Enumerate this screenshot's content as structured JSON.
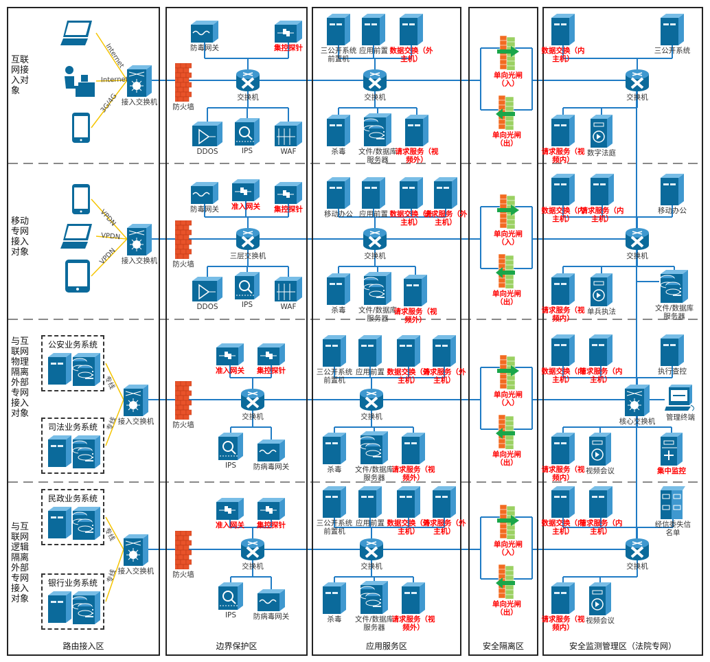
{
  "colors": {
    "device": "#0b6a9b",
    "wire": "#1f7bc4",
    "highlight": "#ff0000",
    "firewall": "#e8532a",
    "link": "#f5c400"
  },
  "zones": [
    "路由接入区",
    "边界保护区",
    "应用服务区",
    "安全隔离区",
    "安全监测管理区（法院专网）"
  ],
  "rows": [
    {
      "label": "互联网接入对象",
      "links": [
        "Internet",
        "Internet",
        "3G/4G"
      ],
      "nodes": [
        {
          "icon": "laptop",
          "label": ""
        },
        {
          "icon": "person",
          "label": ""
        },
        {
          "icon": "phone",
          "label": ""
        },
        {
          "icon": "l3switch",
          "label": "接入交换机"
        },
        {
          "icon": "firewall",
          "label": "防火墙"
        },
        {
          "icon": "gateway",
          "label": "防毒网关"
        },
        {
          "icon": "probe",
          "label": "集控探针",
          "highlight": true
        },
        {
          "icon": "switch",
          "label": "交换机"
        },
        {
          "icon": "ddos",
          "label": "DDOS"
        },
        {
          "icon": "ips",
          "label": "IPS"
        },
        {
          "icon": "waf",
          "label": "WAF"
        },
        {
          "icon": "server",
          "label": "三公开系统前置机"
        },
        {
          "icon": "server",
          "label": "应用前置"
        },
        {
          "icon": "server",
          "label": "数据交换（外主机）",
          "highlight": true
        },
        {
          "icon": "switch",
          "label": "交换机"
        },
        {
          "icon": "server",
          "label": "杀毒"
        },
        {
          "icon": "db",
          "label": "文件/数据库服务器"
        },
        {
          "icon": "server",
          "label": "请求服务（视频外）",
          "highlight": true
        },
        {
          "icon": "gate-in",
          "label": "单向光闸（入）",
          "highlight": true
        },
        {
          "icon": "gate-out",
          "label": "单向光闸（出）",
          "highlight": true
        },
        {
          "icon": "server",
          "label": "数据交换（内主机）",
          "highlight": true
        },
        {
          "icon": "server",
          "label": "三公开系统"
        },
        {
          "icon": "switch",
          "label": "交换机"
        },
        {
          "icon": "server",
          "label": "请求服务（视频内）",
          "highlight": true
        },
        {
          "icon": "video",
          "label": "数字法庭"
        }
      ]
    },
    {
      "label": "移动专网接入对象",
      "links": [
        "VPDN",
        "VPDN",
        "VPDN"
      ],
      "nodes": [
        {
          "icon": "phone",
          "label": ""
        },
        {
          "icon": "laptop",
          "label": ""
        },
        {
          "icon": "tablet",
          "label": ""
        },
        {
          "icon": "l3switch",
          "label": "接入交换机"
        },
        {
          "icon": "firewall",
          "label": "防火墙"
        },
        {
          "icon": "gateway",
          "label": "防毒网关"
        },
        {
          "icon": "probe",
          "label": "准入网关",
          "highlight": true
        },
        {
          "icon": "probe",
          "label": "集控探针",
          "highlight": true
        },
        {
          "icon": "switch",
          "label": "三层交换机"
        },
        {
          "icon": "ddos",
          "label": "DDOS"
        },
        {
          "icon": "ips",
          "label": "IPS"
        },
        {
          "icon": "waf",
          "label": "WAF"
        },
        {
          "icon": "server",
          "label": "移动办公"
        },
        {
          "icon": "server",
          "label": "应用前置"
        },
        {
          "icon": "server",
          "label": "数据交换（外主机）",
          "highlight": true
        },
        {
          "icon": "server",
          "label": "请求服务（外主机）",
          "highlight": true
        },
        {
          "icon": "switch",
          "label": "交换机"
        },
        {
          "icon": "server",
          "label": "杀毒"
        },
        {
          "icon": "db",
          "label": "文件/数据库服务器"
        },
        {
          "icon": "server",
          "label": "请求服务（视频外）",
          "highlight": true
        },
        {
          "icon": "gate-in",
          "label": "单向光闸（入）",
          "highlight": true
        },
        {
          "icon": "gate-out",
          "label": "单向光闸（出）",
          "highlight": true
        },
        {
          "icon": "server",
          "label": "数据交换（内主机）",
          "highlight": true
        },
        {
          "icon": "server",
          "label": "请求服务（内主机）",
          "highlight": true
        },
        {
          "icon": "server",
          "label": "移动办公"
        },
        {
          "icon": "switch",
          "label": "交换机"
        },
        {
          "icon": "server",
          "label": "请求服务（视频内）",
          "highlight": true
        },
        {
          "icon": "video",
          "label": "单兵执法"
        },
        {
          "icon": "db",
          "label": "文件/数据库服务器"
        }
      ]
    },
    {
      "label": "与互联网物理隔离外部专网接入对象",
      "links": [
        "专线",
        "专线"
      ],
      "nodes": [
        {
          "icon": "group",
          "label": "公安业务系统"
        },
        {
          "icon": "group",
          "label": "司法业务系统"
        },
        {
          "icon": "l3switch",
          "label": "接入交换机"
        },
        {
          "icon": "probe",
          "label": "准入网关",
          "highlight": true
        },
        {
          "icon": "probe",
          "label": "集控探针",
          "highlight": true
        },
        {
          "icon": "firewall",
          "label": "防火墙"
        },
        {
          "icon": "switch",
          "label": "交换机"
        },
        {
          "icon": "ips",
          "label": "IPS"
        },
        {
          "icon": "gateway",
          "label": "防病毒网关"
        },
        {
          "icon": "server",
          "label": "三公开系统前置机"
        },
        {
          "icon": "server",
          "label": "应用前置"
        },
        {
          "icon": "server",
          "label": "数据交换（外主机）",
          "highlight": true
        },
        {
          "icon": "server",
          "label": "请求服务（外主机）",
          "highlight": true
        },
        {
          "icon": "switch",
          "label": "交换机"
        },
        {
          "icon": "server",
          "label": "杀毒"
        },
        {
          "icon": "db",
          "label": "文件/数据库服务器"
        },
        {
          "icon": "server",
          "label": "请求服务（视频外）",
          "highlight": true
        },
        {
          "icon": "gate-in",
          "label": "单向光闸（入）",
          "highlight": true
        },
        {
          "icon": "gate-out",
          "label": "单向光闸（出）",
          "highlight": true
        },
        {
          "icon": "server",
          "label": "数据交换（内主机）",
          "highlight": true
        },
        {
          "icon": "server",
          "label": "请求服务（内主机）",
          "highlight": true
        },
        {
          "icon": "server",
          "label": "执行查控"
        },
        {
          "icon": "l3switch",
          "label": "核心交换机"
        },
        {
          "icon": "terminal",
          "label": "管理终端"
        },
        {
          "icon": "server",
          "label": "请求服务（视频内）",
          "highlight": true
        },
        {
          "icon": "video",
          "label": "视频会议"
        },
        {
          "icon": "monitor",
          "label": "集中监控",
          "highlight": true
        }
      ]
    },
    {
      "label": "与互联网逻辑隔离外部专网接入对象",
      "links": [
        "专线",
        "专线"
      ],
      "nodes": [
        {
          "icon": "group",
          "label": "民政业务系统"
        },
        {
          "icon": "group",
          "label": "银行业务系统"
        },
        {
          "icon": "l3switch",
          "label": "接入交换机"
        },
        {
          "icon": "probe",
          "label": "准入网关",
          "highlight": true
        },
        {
          "icon": "probe",
          "label": "集控探针",
          "highlight": true
        },
        {
          "icon": "firewall",
          "label": "防火墙"
        },
        {
          "icon": "switch",
          "label": "交换机"
        },
        {
          "icon": "ips",
          "label": "IPS"
        },
        {
          "icon": "gateway",
          "label": "防病毒网关"
        },
        {
          "icon": "server",
          "label": "三公开系统前置机"
        },
        {
          "icon": "server",
          "label": "应用前置"
        },
        {
          "icon": "server",
          "label": "数据交换（外主机）",
          "highlight": true
        },
        {
          "icon": "server",
          "label": "请求服务（外主机）",
          "highlight": true
        },
        {
          "icon": "switch",
          "label": "交换机"
        },
        {
          "icon": "server",
          "label": "杀毒"
        },
        {
          "icon": "db",
          "label": "文件/数据库服务器"
        },
        {
          "icon": "server",
          "label": "请求服务（视频外）",
          "highlight": true
        },
        {
          "icon": "gate-in",
          "label": "单向光闸（入）",
          "highlight": true
        },
        {
          "icon": "gate-out",
          "label": "单向光闸（出）",
          "highlight": true
        },
        {
          "icon": "server",
          "label": "数据交换（内主机）",
          "highlight": true
        },
        {
          "icon": "server",
          "label": "请求服务（内主机）",
          "highlight": true
        },
        {
          "icon": "blacklist",
          "label": "经信委失信名单"
        },
        {
          "icon": "switch",
          "label": "交换机"
        },
        {
          "icon": "server",
          "label": "请求服务（视频内）",
          "highlight": true
        },
        {
          "icon": "video",
          "label": "视频会议"
        }
      ]
    }
  ]
}
